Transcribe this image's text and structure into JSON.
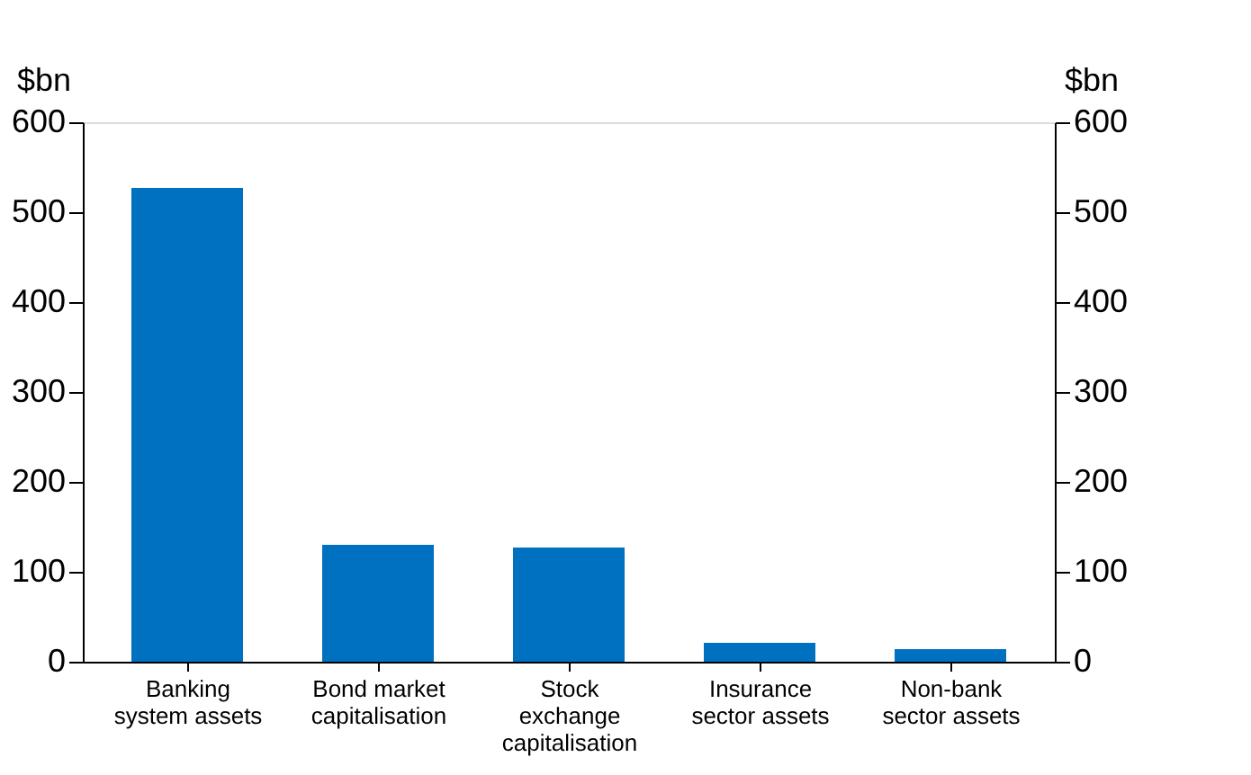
{
  "chart_data": {
    "type": "bar",
    "categories": [
      "Banking\nsystem assets",
      "Bond market\ncapitalisation",
      "Stock\nexchange\ncapitalisation",
      "Insurance\nsector assets",
      "Non-bank\nsector assets"
    ],
    "values": [
      527,
      130,
      127,
      21,
      14
    ],
    "color": "#0070c0",
    "ylabel": "$bn",
    "y2label": "$bn",
    "ylim": [
      0,
      600
    ],
    "yticks": [
      0,
      100,
      200,
      300,
      400,
      500,
      600
    ],
    "y2lim": [
      0,
      600
    ],
    "y2ticks": [
      0,
      100,
      200,
      300,
      400,
      500,
      600
    ],
    "grid": false
  }
}
